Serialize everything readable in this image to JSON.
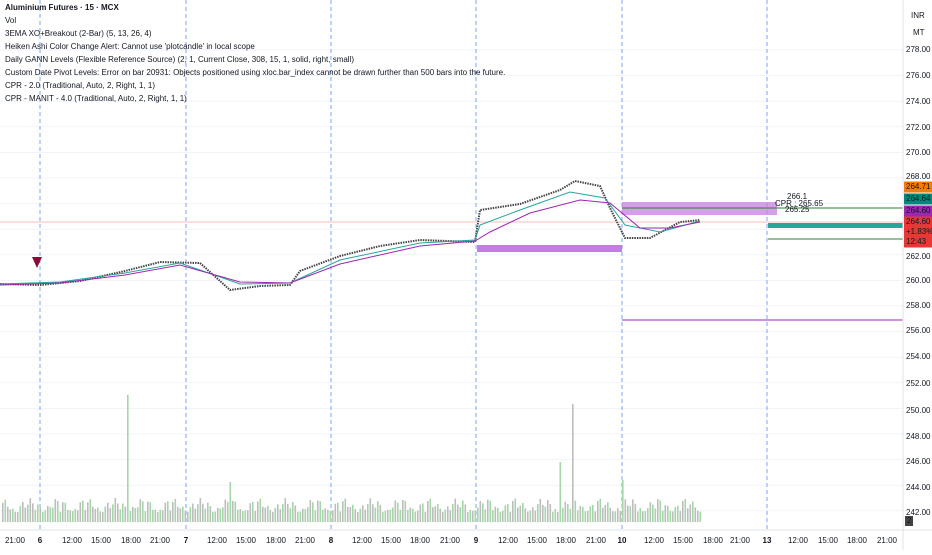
{
  "header": {
    "title": "Aluminium Futures · 15 · MCX",
    "volume": "Vol",
    "indicators": [
      "3EMA XO+Breakout (2-Bar) (5, 13, 26, 4)",
      "Heiken Ashi Color Change Alert: Cannot use 'plotcandle' in local scope",
      "Daily GANN Levels (Flexible Reference Source) (2, 1, Current Close, 308, 15, 1, solid, right, small)",
      "Custom Date Pivot Levels: Error on bar 20931: Objects positioned using xloc.bar_index cannot be drawn further than 500 bars into the future.",
      "CPR - 2.0 (Traditional, Auto, 2, Right, 1, 1)",
      "CPR - MANIT - 4.0 (Traditional, Auto, 2, Right, 1, 1)"
    ]
  },
  "axis_header": {
    "currency": "INR",
    "unit": "MT"
  },
  "price_axis": [
    "278.00",
    "276.00",
    "274.00",
    "272.00",
    "270.00",
    "268.00",
    "262.00",
    "260.00",
    "258.00",
    "256.00",
    "254.00",
    "252.00",
    "250.00",
    "248.00",
    "246.00",
    "244.00",
    "242.00"
  ],
  "time_axis": [
    "21:00",
    "6",
    "12:00",
    "15:00",
    "18:00",
    "21:00",
    "7",
    "12:00",
    "15:00",
    "18:00",
    "21:00",
    "8",
    "12:00",
    "15:00",
    "18:00",
    "21:00",
    "9",
    "12:00",
    "15:00",
    "18:00",
    "21:00",
    "10",
    "12:00",
    "15:00",
    "18:00",
    "21:00",
    "13",
    "12:00",
    "15:00",
    "18:00",
    "21:00"
  ],
  "price_tags": [
    "264.71",
    "264.64",
    "264.60",
    "264.60",
    "+1.83%",
    "12:43"
  ],
  "chart_labels": [
    "266.1",
    "CPR : 265.65",
    "265.25"
  ],
  "corner": "2"
}
